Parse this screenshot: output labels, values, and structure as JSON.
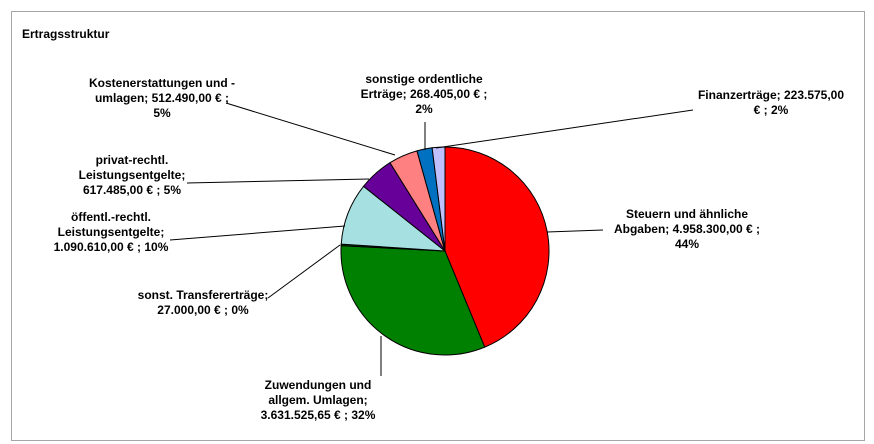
{
  "chart_data": {
    "type": "pie",
    "title": "Ertragsstruktur",
    "slices": [
      {
        "name": "Steuern und ähnliche Abgaben",
        "value": 4958300.0,
        "value_text": "4.958.300,00 €",
        "percent_text": "44%",
        "color": "#ff0000",
        "label_lines": [
          "Steuern und ähnliche",
          "Abgaben;  4.958.300,00 € ;",
          "44%"
        ]
      },
      {
        "name": "Zuwendungen und allgem. Umlagen",
        "value": 3631525.65,
        "value_text": "3.631.525,65 €",
        "percent_text": "32%",
        "color": "#008000",
        "label_lines": [
          "Zuwendungen und",
          "allgem. Umlagen;",
          "3.631.525,65 € ; 32%"
        ]
      },
      {
        "name": "sonst. Transfererträge",
        "value": 27000.0,
        "value_text": "27.000,00 €",
        "percent_text": "0%",
        "color": "#006400",
        "label_lines": [
          "sonst. Transfererträge;",
          "27.000,00 € ; 0%"
        ]
      },
      {
        "name": "öffentl.-rechtl. Leistungsentgelte",
        "value": 1090610.0,
        "value_text": "1.090.610,00 €",
        "percent_text": "10%",
        "color": "#a6e0e0",
        "label_lines": [
          "öffentl.-rechtl.",
          "Leistungsentgelte;",
          "1.090.610,00 € ; 10%"
        ]
      },
      {
        "name": "privat-rechtl. Leistungsentgelte",
        "value": 617485.0,
        "value_text": "617.485,00 €",
        "percent_text": "5%",
        "color": "#660099",
        "label_lines": [
          "privat-rechtl.",
          "Leistungsentgelte;",
          "617.485,00 € ; 5%"
        ]
      },
      {
        "name": "Kostenerstattungen und -umlagen",
        "value": 512490.0,
        "value_text": "512.490,00 €",
        "percent_text": "5%",
        "color": "#ff8080",
        "label_lines": [
          "Kostenerstattungen und -",
          "umlagen;  512.490,00 € ;",
          "5%"
        ]
      },
      {
        "name": "sonstige ordentliche Erträge",
        "value": 268405.0,
        "value_text": "268.405,00 €",
        "percent_text": "2%",
        "color": "#0070c0",
        "label_lines": [
          "sonstige ordentliche",
          "Erträge;  268.405,00 € ;",
          "2%"
        ]
      },
      {
        "name": "Finanzerträge",
        "value": 223575.0,
        "value_text": "223.575,00 €",
        "percent_text": "2%",
        "color": "#c0c0ff",
        "label_lines": [
          "Finanzerträge;  223.575,00",
          "€ ; 2%"
        ]
      }
    ]
  }
}
